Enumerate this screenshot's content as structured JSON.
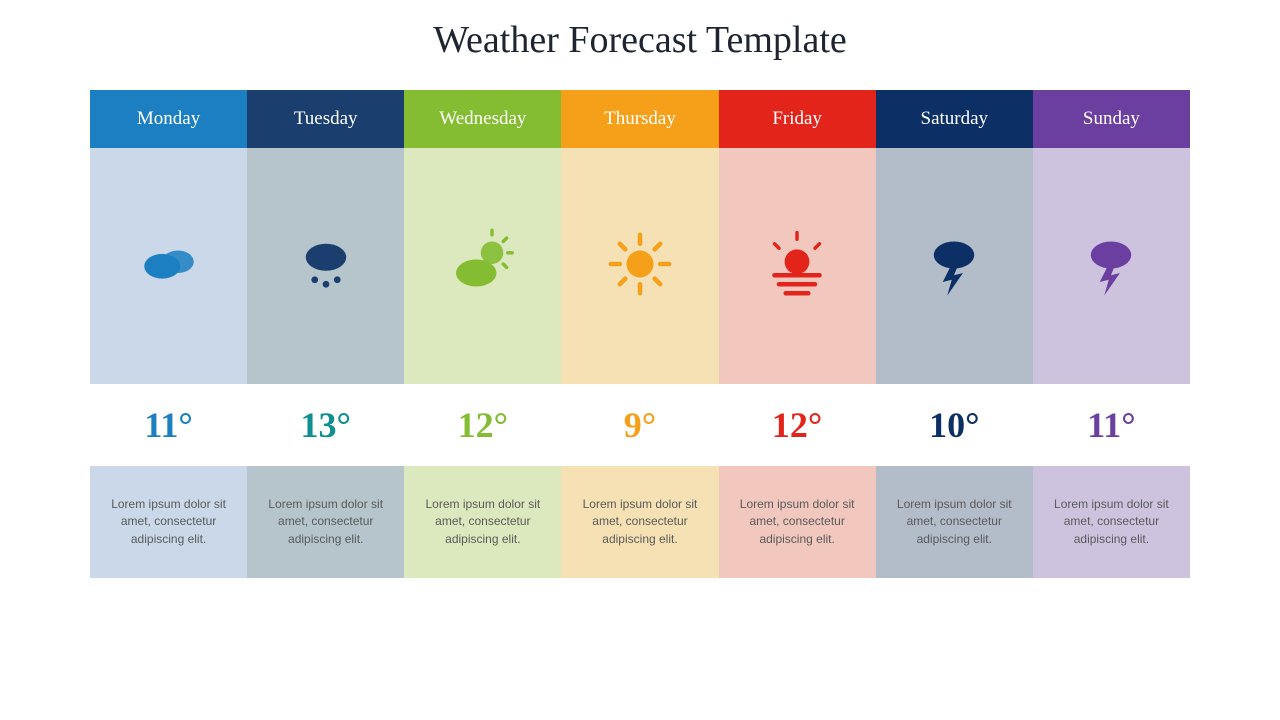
{
  "title": "Weather Forecast Template",
  "title_color": "#1f2a3a",
  "title_fontsize": 38,
  "background": "#ffffff",
  "days": [
    {
      "name": "Monday",
      "header_bg": "#1c7fc1",
      "body_bg": "#cad8ea",
      "desc_bg": "#cad8ea",
      "icon_color": "#1c7fc1",
      "temp_color": "#1c7fc1",
      "icon": "cloudy",
      "temp": "11°",
      "desc": "Lorem ipsum dolor sit amet, consectetur adipiscing elit."
    },
    {
      "name": "Tuesday",
      "header_bg": "#1a3f6e",
      "body_bg": "#b6c4cc",
      "desc_bg": "#b6c4cc",
      "icon_color": "#1a3f6e",
      "temp_color": "#0f8f8f",
      "icon": "rain",
      "temp": "13°",
      "desc": "Lorem ipsum dolor sit amet, consectetur adipiscing elit."
    },
    {
      "name": "Wednesday",
      "header_bg": "#84bc32",
      "body_bg": "#dce8bd",
      "desc_bg": "#dce8bd",
      "icon_color": "#84bc32",
      "temp_color": "#84bc32",
      "icon": "partly-sunny",
      "temp": "12°",
      "desc": "Lorem ipsum dolor sit amet, consectetur adipiscing elit."
    },
    {
      "name": "Thursday",
      "header_bg": "#f6a01a",
      "body_bg": "#f6e1b4",
      "desc_bg": "#f6e1b4",
      "icon_color": "#f6a01a",
      "temp_color": "#f6a01a",
      "icon": "sunny",
      "temp": "9°",
      "desc": "Lorem ipsum dolor sit amet, consectetur adipiscing elit."
    },
    {
      "name": "Friday",
      "header_bg": "#e2241a",
      "body_bg": "#f1c7be",
      "desc_bg": "#f1c7be",
      "icon_color": "#e2241a",
      "temp_color": "#e2241a",
      "icon": "sunset",
      "temp": "12°",
      "desc": "Lorem ipsum dolor sit amet, consectetur adipiscing elit."
    },
    {
      "name": "Saturday",
      "header_bg": "#0c2f66",
      "body_bg": "#b2bdc9",
      "desc_bg": "#b2bdc9",
      "icon_color": "#0c2f66",
      "temp_color": "#0c2f66",
      "icon": "storm",
      "temp": "10°",
      "desc": "Lorem ipsum dolor sit amet, consectetur adipiscing elit."
    },
    {
      "name": "Sunday",
      "header_bg": "#6b3fa0",
      "body_bg": "#cec3df",
      "desc_bg": "#cec3df",
      "icon_color": "#6b3fa0",
      "temp_color": "#6b3fa0",
      "icon": "storm",
      "temp": "11°",
      "desc": "Lorem ipsum dolor sit amet, consectetur adipiscing elit."
    }
  ]
}
